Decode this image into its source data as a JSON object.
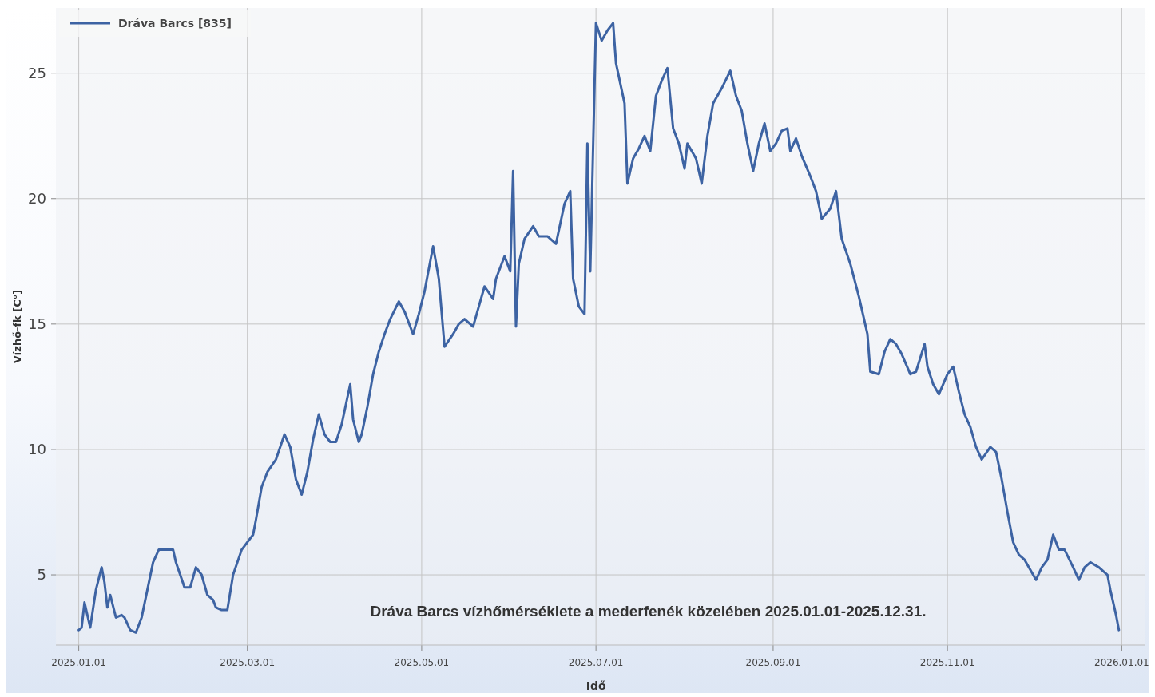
{
  "chart_data": {
    "type": "line",
    "xlabel": "Idő",
    "ylabel": "Vízhő-fk [C°]",
    "annotations": [
      "Dráva Barcs vízhőmérséklete a mederfenék közelében 2025.01.01-2025.12.31."
    ],
    "xlim": [
      "2024-12-24",
      "2026-01-09"
    ],
    "xticks": [
      {
        "value": "2025-01-01",
        "label": "2025.01.01"
      },
      {
        "value": "2025-03-01",
        "label": "2025.03.01"
      },
      {
        "value": "2025-05-01",
        "label": "2025.05.01"
      },
      {
        "value": "2025-07-01",
        "label": "2025.07.01"
      },
      {
        "value": "2025-09-01",
        "label": "2025.09.01"
      },
      {
        "value": "2025-11-01",
        "label": "2025.11.01"
      },
      {
        "value": "2026-01-01",
        "label": "2026.01.01"
      }
    ],
    "ylim": [
      2.2,
      27.6
    ],
    "yticks": [
      5,
      10,
      15,
      20,
      25
    ],
    "grid": true,
    "legend": "top left",
    "line_style": "solid",
    "marker": "none",
    "series": [
      {
        "name": "Dráva Barcs [835]",
        "color": "#3d63a3",
        "x": [
          "2025-01-01",
          "2025-01-02",
          "2025-01-03",
          "2025-01-05",
          "2025-01-07",
          "2025-01-09",
          "2025-01-10",
          "2025-01-11",
          "2025-01-12",
          "2025-01-14",
          "2025-01-16",
          "2025-01-17",
          "2025-01-19",
          "2025-01-21",
          "2025-01-23",
          "2025-01-25",
          "2025-01-27",
          "2025-01-29",
          "2025-02-01",
          "2025-02-03",
          "2025-02-04",
          "2025-02-07",
          "2025-02-09",
          "2025-02-11",
          "2025-02-13",
          "2025-02-15",
          "2025-02-17",
          "2025-02-18",
          "2025-02-20",
          "2025-02-22",
          "2025-02-24",
          "2025-02-27",
          "2025-03-01",
          "2025-03-03",
          "2025-03-04",
          "2025-03-06",
          "2025-03-08",
          "2025-03-11",
          "2025-03-14",
          "2025-03-16",
          "2025-03-18",
          "2025-03-20",
          "2025-03-22",
          "2025-03-24",
          "2025-03-26",
          "2025-03-28",
          "2025-03-30",
          "2025-04-01",
          "2025-04-03",
          "2025-04-06",
          "2025-04-07",
          "2025-04-09",
          "2025-04-10",
          "2025-04-12",
          "2025-04-14",
          "2025-04-16",
          "2025-04-18",
          "2025-04-20",
          "2025-04-23",
          "2025-04-25",
          "2025-04-28",
          "2025-04-30",
          "2025-05-02",
          "2025-05-05",
          "2025-05-07",
          "2025-05-09",
          "2025-05-12",
          "2025-05-14",
          "2025-05-16",
          "2025-05-19",
          "2025-05-21",
          "2025-05-23",
          "2025-05-26",
          "2025-05-27",
          "2025-05-30",
          "2025-06-01",
          "2025-06-02",
          "2025-06-03",
          "2025-06-04",
          "2025-06-06",
          "2025-06-09",
          "2025-06-11",
          "2025-06-14",
          "2025-06-17",
          "2025-06-20",
          "2025-06-22",
          "2025-06-23",
          "2025-06-25",
          "2025-06-27",
          "2025-06-28",
          "2025-06-29",
          "2025-07-01",
          "2025-07-03",
          "2025-07-05",
          "2025-07-07",
          "2025-07-08",
          "2025-07-11",
          "2025-07-12",
          "2025-07-14",
          "2025-07-16",
          "2025-07-18",
          "2025-07-20",
          "2025-07-22",
          "2025-07-24",
          "2025-07-26",
          "2025-07-28",
          "2025-07-30",
          "2025-08-01",
          "2025-08-02",
          "2025-08-05",
          "2025-08-07",
          "2025-08-09",
          "2025-08-11",
          "2025-08-14",
          "2025-08-17",
          "2025-08-19",
          "2025-08-21",
          "2025-08-23",
          "2025-08-25",
          "2025-08-27",
          "2025-08-29",
          "2025-08-31",
          "2025-09-02",
          "2025-09-04",
          "2025-09-06",
          "2025-09-07",
          "2025-09-09",
          "2025-09-11",
          "2025-09-14",
          "2025-09-16",
          "2025-09-18",
          "2025-09-21",
          "2025-09-23",
          "2025-09-25",
          "2025-09-28",
          "2025-10-01",
          "2025-10-04",
          "2025-10-05",
          "2025-10-08",
          "2025-10-10",
          "2025-10-12",
          "2025-10-14",
          "2025-10-16",
          "2025-10-19",
          "2025-10-21",
          "2025-10-24",
          "2025-10-25",
          "2025-10-27",
          "2025-10-29",
          "2025-11-01",
          "2025-11-03",
          "2025-11-05",
          "2025-11-07",
          "2025-11-09",
          "2025-11-11",
          "2025-11-13",
          "2025-11-16",
          "2025-11-18",
          "2025-11-20",
          "2025-11-22",
          "2025-11-24",
          "2025-11-26",
          "2025-11-28",
          "2025-11-30",
          "2025-12-02",
          "2025-12-04",
          "2025-12-06",
          "2025-12-08",
          "2025-12-10",
          "2025-12-12",
          "2025-12-15",
          "2025-12-17",
          "2025-12-19",
          "2025-12-21",
          "2025-12-24",
          "2025-12-27",
          "2025-12-28",
          "2025-12-30",
          "2025-12-31"
        ],
        "values": [
          2.8,
          2.9,
          3.9,
          2.9,
          4.4,
          5.3,
          4.7,
          3.7,
          4.2,
          3.3,
          3.4,
          3.3,
          2.8,
          2.7,
          3.3,
          4.4,
          5.5,
          6.0,
          6.0,
          6.0,
          5.5,
          4.5,
          4.5,
          5.3,
          5.0,
          4.2,
          4.0,
          3.7,
          3.6,
          3.6,
          5.0,
          6.0,
          6.3,
          6.6,
          7.2,
          8.5,
          9.1,
          9.6,
          10.6,
          10.1,
          8.8,
          8.2,
          9.1,
          10.4,
          11.4,
          10.6,
          10.3,
          10.3,
          11.0,
          12.6,
          11.2,
          10.3,
          10.6,
          11.7,
          13.0,
          13.9,
          14.6,
          15.2,
          15.9,
          15.5,
          14.6,
          15.4,
          16.3,
          18.1,
          16.8,
          14.1,
          14.6,
          15.0,
          15.2,
          14.9,
          15.7,
          16.5,
          16.0,
          16.8,
          17.7,
          17.1,
          21.1,
          14.9,
          17.4,
          18.4,
          18.9,
          18.5,
          18.5,
          18.2,
          19.8,
          20.3,
          16.8,
          15.7,
          15.4,
          22.2,
          17.1,
          27.0,
          26.3,
          26.7,
          27.0,
          25.4,
          23.8,
          20.6,
          21.6,
          22.0,
          22.5,
          21.9,
          24.1,
          24.7,
          25.2,
          22.8,
          22.2,
          21.2,
          22.2,
          21.6,
          20.6,
          22.5,
          23.8,
          24.4,
          25.1,
          24.1,
          23.5,
          22.2,
          21.1,
          22.2,
          23.0,
          21.9,
          22.2,
          22.7,
          22.8,
          21.9,
          22.4,
          21.7,
          20.9,
          20.3,
          19.2,
          19.6,
          20.3,
          18.4,
          17.4,
          16.1,
          14.6,
          13.1,
          13.0,
          13.9,
          14.4,
          14.2,
          13.8,
          13.0,
          13.1,
          14.2,
          13.3,
          12.6,
          12.2,
          13.0,
          13.3,
          12.3,
          11.4,
          10.9,
          10.1,
          9.6,
          10.1,
          9.9,
          8.8,
          7.5,
          6.3,
          5.8,
          5.6,
          5.2,
          4.8,
          5.3,
          5.6,
          6.6,
          6.0,
          6.0,
          5.3,
          4.8,
          5.3,
          5.5,
          5.3,
          5.0,
          4.4,
          3.4,
          2.8
        ]
      }
    ]
  }
}
